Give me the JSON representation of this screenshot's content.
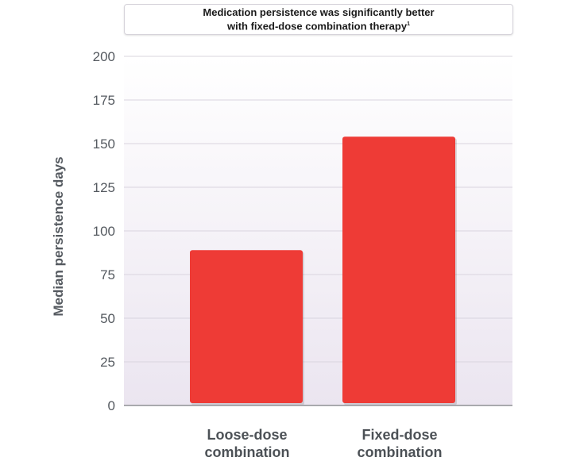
{
  "chart_data": {
    "type": "bar",
    "title_lines": [
      "Medication persistence was significantly better",
      "with fixed-dose combination therapy"
    ],
    "title_superscript": "1",
    "categories": [
      "Loose-dose combination",
      "Fixed-dose combination"
    ],
    "category_lines": [
      [
        "Loose-dose",
        "combination"
      ],
      [
        "Fixed-dose",
        "combination"
      ]
    ],
    "values": [
      89,
      154
    ],
    "xlabel": "",
    "ylabel": "Median persistence days",
    "ylim": [
      0,
      200
    ],
    "yticks": [
      0,
      25,
      50,
      75,
      100,
      125,
      150,
      175,
      200
    ],
    "grid": true,
    "bar_color": "#ee3b36",
    "background_gradient": [
      "#ffffff",
      "#ebe5f0"
    ]
  }
}
